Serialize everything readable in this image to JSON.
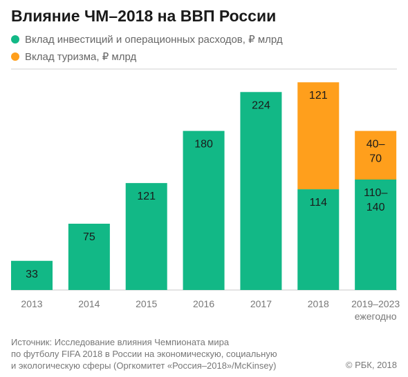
{
  "title": "Влияние ЧМ–2018 на ВВП России",
  "colors": {
    "investment": "#12b886",
    "tourism": "#ff9f1c"
  },
  "legend": [
    {
      "label": "Вклад инвестиций и операционных расходов, ₽ млрд",
      "color": "#12b886"
    },
    {
      "label": "Вклад туризма, ₽ млрд",
      "color": "#ff9f1c"
    }
  ],
  "chart_data": {
    "type": "bar",
    "stacked": true,
    "categories": [
      "2013",
      "2014",
      "2015",
      "2016",
      "2017",
      "2018",
      "2019–2023 ежегодно"
    ],
    "series": [
      {
        "name": "Вклад инвестиций и операционных расходов, ₽ млрд",
        "values": [
          33,
          75,
          121,
          180,
          224,
          114,
          125
        ],
        "labels": [
          "33",
          "75",
          "121",
          "180",
          "224",
          "114",
          "110–140"
        ]
      },
      {
        "name": "Вклад туризма, ₽ млрд",
        "values": [
          0,
          0,
          0,
          0,
          0,
          121,
          55
        ],
        "labels": [
          "",
          "",
          "",
          "",
          "",
          "121",
          "40–70"
        ]
      }
    ],
    "ylim": [
      0,
      250
    ],
    "grid": false,
    "legend_position": "top-left"
  },
  "footer": {
    "source_lines": [
      "Источник: Исследование влияния Чемпионата мира",
      "по футболу FIFA 2018 в России на экономическую, социальную",
      "и экологическую сферы (Оргкомитет «Россия–2018»/McKinsey)"
    ],
    "copyright": "© РБК, 2018"
  }
}
